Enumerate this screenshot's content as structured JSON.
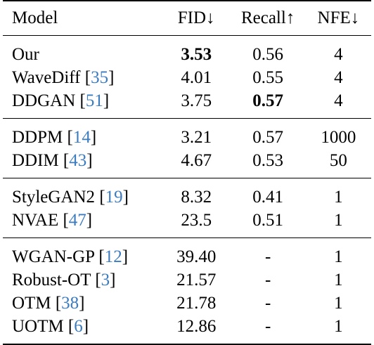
{
  "headers": {
    "model": "Model",
    "fid": "FID↓",
    "recall": "Recall↑",
    "nfe": "NFE↓"
  },
  "groups": [
    {
      "rows": [
        {
          "name": "Our",
          "ref": "",
          "fid": "3.53",
          "recall": "0.56",
          "nfe": "4",
          "bold_fid": true,
          "bold_recall": false
        },
        {
          "name": "WaveDiff",
          "ref": "35",
          "fid": "4.01",
          "recall": "0.55",
          "nfe": "4",
          "bold_fid": false,
          "bold_recall": false
        },
        {
          "name": "DDGAN",
          "ref": "51",
          "fid": "3.75",
          "recall": "0.57",
          "nfe": "4",
          "bold_fid": false,
          "bold_recall": true
        }
      ]
    },
    {
      "rows": [
        {
          "name": "DDPM",
          "ref": "14",
          "fid": "3.21",
          "recall": "0.57",
          "nfe": "1000",
          "bold_fid": false,
          "bold_recall": false
        },
        {
          "name": "DDIM",
          "ref": "43",
          "fid": "4.67",
          "recall": "0.53",
          "nfe": "50",
          "bold_fid": false,
          "bold_recall": false
        }
      ]
    },
    {
      "rows": [
        {
          "name": "StyleGAN2",
          "ref": "19",
          "fid": "8.32",
          "recall": "0.41",
          "nfe": "1",
          "bold_fid": false,
          "bold_recall": false
        },
        {
          "name": "NVAE",
          "ref": "47",
          "fid": "23.5",
          "recall": "0.51",
          "nfe": "1",
          "bold_fid": false,
          "bold_recall": false
        }
      ]
    },
    {
      "rows": [
        {
          "name": "WGAN-GP",
          "ref": "12",
          "fid": "39.40",
          "recall": "-",
          "nfe": "1",
          "bold_fid": false,
          "bold_recall": false
        },
        {
          "name": "Robust-OT",
          "ref": "3",
          "fid": "21.57",
          "recall": "-",
          "nfe": "1",
          "bold_fid": false,
          "bold_recall": false
        },
        {
          "name": "OTM",
          "ref": "38",
          "fid": "21.78",
          "recall": "-",
          "nfe": "1",
          "bold_fid": false,
          "bold_recall": false
        },
        {
          "name": "UOTM",
          "ref": "6",
          "fid": "12.86",
          "recall": "-",
          "nfe": "1",
          "bold_fid": false,
          "bold_recall": false
        }
      ]
    }
  ],
  "colors": {
    "text": "#000000",
    "citation": "#3b7bbf"
  }
}
